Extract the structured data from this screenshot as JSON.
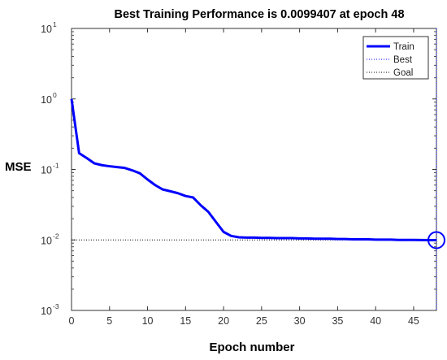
{
  "chart_data": {
    "type": "line",
    "title": "Best Training Performance is 0.0099407 at epoch 48",
    "xlabel": "Epoch number",
    "ylabel": "MSE",
    "xlim": [
      0,
      48
    ],
    "ylim": [
      0.001,
      10
    ],
    "yscale": "log",
    "grid": false,
    "legend_position": "top-right",
    "x_ticks": [
      0,
      5,
      10,
      15,
      20,
      25,
      30,
      35,
      40,
      45
    ],
    "y_ticks": [
      {
        "base": "10",
        "exp": "-3",
        "value": 0.001
      },
      {
        "base": "10",
        "exp": "-2",
        "value": 0.01
      },
      {
        "base": "10",
        "exp": "-1",
        "value": 0.1
      },
      {
        "base": "10",
        "exp": "0",
        "value": 1
      },
      {
        "base": "10",
        "exp": "1",
        "value": 10
      }
    ],
    "series": [
      {
        "name": "Train",
        "color": "#0000ff",
        "x": [
          0,
          1,
          2,
          3,
          4,
          5,
          6,
          7,
          8,
          9,
          10,
          11,
          12,
          13,
          14,
          15,
          16,
          17,
          18,
          19,
          20,
          21,
          22,
          23,
          24,
          25,
          26,
          27,
          28,
          29,
          30,
          31,
          32,
          33,
          34,
          35,
          36,
          37,
          38,
          39,
          40,
          41,
          42,
          43,
          44,
          45,
          46,
          47,
          48
        ],
        "y": [
          1.0,
          0.17,
          0.145,
          0.122,
          0.115,
          0.111,
          0.108,
          0.105,
          0.097,
          0.088,
          0.072,
          0.06,
          0.052,
          0.049,
          0.046,
          0.042,
          0.04,
          0.031,
          0.025,
          0.018,
          0.013,
          0.0114,
          0.0109,
          0.0108,
          0.0108,
          0.0107,
          0.0107,
          0.0106,
          0.0106,
          0.0106,
          0.0105,
          0.0105,
          0.0104,
          0.0104,
          0.0104,
          0.0103,
          0.0103,
          0.0102,
          0.0102,
          0.0102,
          0.0101,
          0.0101,
          0.0101,
          0.01,
          0.01,
          0.01,
          0.00997,
          0.00995,
          0.0099407
        ]
      }
    ],
    "best": {
      "name": "Best",
      "epoch": 48,
      "value": 0.0099407,
      "color": "#0000ff"
    },
    "goal": {
      "name": "Goal",
      "value": 0.01,
      "color": "#000000"
    }
  }
}
